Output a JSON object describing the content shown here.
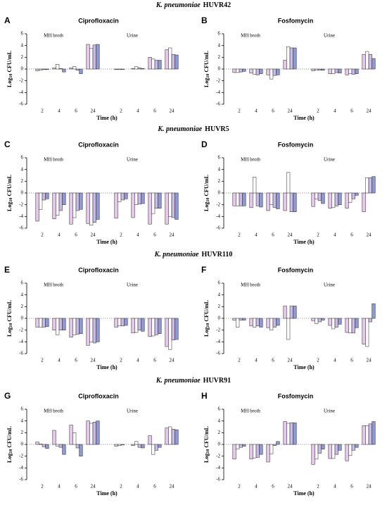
{
  "sections": [
    {
      "species": "K. pneumoniae",
      "strain": "HUVR42"
    },
    {
      "species": "K. pneumoniae",
      "strain": "HUVR5"
    },
    {
      "species": "K. pneumoniae",
      "strain": "HUVR110"
    },
    {
      "species": "K. pneumoniae",
      "strain": "HUVR91"
    }
  ],
  "chart_data": [
    {
      "type": "bar",
      "panel": "A",
      "title": "Ciprofloxacin",
      "ylabel": [
        "Log",
        "10",
        " CFU/mL"
      ],
      "xlabel": "Time (h)",
      "groups": [
        "MH broth",
        "Urine"
      ],
      "categories": [
        "2",
        "4",
        "6",
        "24",
        "2",
        "4",
        "6",
        "24"
      ],
      "ylim": [
        -6,
        6
      ],
      "yticks": [
        -6,
        -4,
        -2,
        0,
        2,
        4,
        6
      ],
      "series": [
        {
          "color": "#e9c6ee",
          "values": [
            -0.3,
            0.2,
            0.2,
            4.2,
            -0.1,
            0.1,
            2.0,
            3.3
          ]
        },
        {
          "color": "#ffffff",
          "values": [
            -0.2,
            0.8,
            0.4,
            3.5,
            -0.1,
            0.4,
            1.7,
            3.6
          ]
        },
        {
          "color": "#cbbbe8",
          "values": [
            -0.1,
            0.1,
            -0.2,
            4.1,
            -0.1,
            0.2,
            1.5,
            2.5
          ]
        },
        {
          "color": "#8c99d8",
          "values": [
            -0.1,
            -0.5,
            -0.8,
            4.2,
            0,
            0.1,
            1.5,
            2.4
          ]
        }
      ]
    },
    {
      "type": "bar",
      "panel": "B",
      "title": "Fosfomycin",
      "ylabel": [
        "Log",
        "10",
        " CFU/mL"
      ],
      "xlabel": "Time (h)",
      "groups": [
        "MH broth",
        "Urine"
      ],
      "categories": [
        "2",
        "4",
        "6",
        "24",
        "2",
        "4",
        "6",
        "24"
      ],
      "ylim": [
        -6,
        6
      ],
      "yticks": [
        -6,
        -4,
        -2,
        0,
        2,
        4,
        6
      ],
      "series": [
        {
          "color": "#e9c6ee",
          "values": [
            -0.6,
            -0.7,
            -1.0,
            1.5,
            -0.3,
            -0.8,
            -1.0,
            2.5
          ]
        },
        {
          "color": "#ffffff",
          "values": [
            -0.6,
            -0.9,
            -1.7,
            3.8,
            -0.2,
            -0.8,
            -0.8,
            3.0
          ]
        },
        {
          "color": "#cbbbe8",
          "values": [
            -0.5,
            -1.0,
            -1.1,
            3.6,
            -0.2,
            -0.6,
            -0.9,
            2.5
          ]
        },
        {
          "color": "#8c99d8",
          "values": [
            -0.4,
            -0.8,
            -1.0,
            3.6,
            -0.2,
            -0.7,
            -0.8,
            1.8
          ]
        }
      ]
    },
    {
      "type": "bar",
      "panel": "C",
      "title": "Ciprofloxacin",
      "ylabel": [
        "Log",
        "10",
        " CFU/mL"
      ],
      "xlabel": "Time (h)",
      "groups": [
        "MH broth",
        "Urine"
      ],
      "categories": [
        "2",
        "4",
        "6",
        "24",
        "2",
        "4",
        "6",
        "24"
      ],
      "ylim": [
        -6,
        6
      ],
      "yticks": [
        -6,
        -4,
        -2,
        0,
        2,
        4,
        6
      ],
      "series": [
        {
          "color": "#e9c6ee",
          "values": [
            -4.8,
            -4.4,
            -5.3,
            -5.2,
            -4.3,
            -4.2,
            -5.3,
            -5.3
          ]
        },
        {
          "color": "#ffffff",
          "values": [
            -2.8,
            -3.8,
            -4.2,
            -5.5,
            -1.5,
            -2.0,
            -3.5,
            -4.0
          ]
        },
        {
          "color": "#cbbbe8",
          "values": [
            -1.2,
            -3.0,
            -3.0,
            -5.0,
            -1.2,
            -1.9,
            -2.6,
            -4.2
          ]
        },
        {
          "color": "#8c99d8",
          "values": [
            -1.0,
            -2.0,
            -2.8,
            -4.5,
            -1.0,
            -1.8,
            -2.6,
            -4.5
          ]
        }
      ]
    },
    {
      "type": "bar",
      "panel": "D",
      "title": "Fosfomycin",
      "ylabel": [
        "Log",
        "10",
        " CFU/mL"
      ],
      "xlabel": "Time (h)",
      "groups": [
        "MH broth",
        "Urine"
      ],
      "categories": [
        "2",
        "4",
        "6",
        "24",
        "2",
        "4",
        "6",
        "24"
      ],
      "ylim": [
        -6,
        6
      ],
      "yticks": [
        -6,
        -4,
        -2,
        0,
        2,
        4,
        6
      ],
      "series": [
        {
          "color": "#e9c6ee",
          "values": [
            -2.2,
            -2.5,
            -3.0,
            -3.0,
            -2.3,
            -2.6,
            -2.6,
            -3.2
          ]
        },
        {
          "color": "#ffffff",
          "values": [
            -2.2,
            2.7,
            -2.0,
            3.5,
            -1.0,
            -2.5,
            -1.6,
            2.6
          ]
        },
        {
          "color": "#cbbbe8",
          "values": [
            -2.2,
            -2.2,
            -2.5,
            -3.2,
            -1.3,
            -2.2,
            -1.0,
            2.6
          ]
        },
        {
          "color": "#8c99d8",
          "values": [
            -2.2,
            -2.4,
            -2.7,
            -3.2,
            -1.8,
            -2.0,
            -0.4,
            2.8
          ]
        }
      ]
    },
    {
      "type": "bar",
      "panel": "E",
      "title": "Ciprofloxacin",
      "ylabel": [
        "Log",
        "10",
        " CFU/mL"
      ],
      "xlabel": "Time (h)",
      "groups": [
        "MH broth",
        "Urine"
      ],
      "categories": [
        "2",
        "4",
        "6",
        "24",
        "2",
        "4",
        "6",
        "24"
      ],
      "ylim": [
        -6,
        6
      ],
      "yticks": [
        -6,
        -4,
        -2,
        0,
        2,
        4,
        6
      ],
      "series": [
        {
          "color": "#e9c6ee",
          "values": [
            -1.5,
            -2.0,
            -3.2,
            -4.6,
            -1.5,
            -2.5,
            -3.1,
            -4.8
          ]
        },
        {
          "color": "#ffffff",
          "values": [
            -1.5,
            -2.8,
            -2.8,
            -4.0,
            -1.3,
            -2.4,
            -3.0,
            -5.3
          ]
        },
        {
          "color": "#cbbbe8",
          "values": [
            -1.5,
            -2.0,
            -2.7,
            -4.2,
            -1.3,
            -2.0,
            -2.8,
            -3.7
          ]
        },
        {
          "color": "#8c99d8",
          "values": [
            -1.4,
            -2.0,
            -2.6,
            -4.0,
            -1.2,
            -2.2,
            -2.6,
            -3.6
          ]
        }
      ]
    },
    {
      "type": "bar",
      "panel": "F",
      "title": "Fosfomycin",
      "ylabel": [
        "Log",
        "10",
        " CFU/mL"
      ],
      "xlabel": "Time (h)",
      "groups": [
        "MH broth",
        "Urine"
      ],
      "categories": [
        "2",
        "4",
        "6",
        "24",
        "2",
        "4",
        "6",
        "24"
      ],
      "ylim": [
        -6,
        6
      ],
      "yticks": [
        -6,
        -4,
        -2,
        0,
        2,
        4,
        6
      ],
      "series": [
        {
          "color": "#e9c6ee",
          "values": [
            -0.3,
            -1.3,
            -1.6,
            2.1,
            -0.4,
            -1.2,
            -2.4,
            -4.4
          ]
        },
        {
          "color": "#ffffff",
          "values": [
            -1.5,
            -1.5,
            -2.0,
            -3.6,
            -0.9,
            -1.8,
            -2.5,
            -4.8
          ]
        },
        {
          "color": "#cbbbe8",
          "values": [
            -0.3,
            -1.3,
            -1.5,
            2.1,
            -0.6,
            -1.5,
            -2.5,
            -0.6
          ]
        },
        {
          "color": "#8c99d8",
          "values": [
            -0.3,
            -1.5,
            -1.2,
            2.1,
            -0.3,
            -1.0,
            -1.6,
            2.5
          ]
        }
      ]
    },
    {
      "type": "bar",
      "panel": "G",
      "title": "Ciprofloxacin",
      "ylabel": [
        "Log",
        "10",
        " CFU/mL"
      ],
      "xlabel": "Time (h)",
      "groups": [
        "MH broth",
        "Urine"
      ],
      "categories": [
        "2",
        "4",
        "6",
        "24",
        "2",
        "4",
        "6",
        "24"
      ],
      "ylim": [
        -6,
        6
      ],
      "yticks": [
        -6,
        -4,
        -2,
        0,
        2,
        4,
        6
      ],
      "series": [
        {
          "color": "#e9c6ee",
          "values": [
            0.4,
            2.4,
            3.3,
            4.0,
            -0.3,
            -0.2,
            1.5,
            2.8
          ]
        },
        {
          "color": "#ffffff",
          "values": [
            0.1,
            -0.3,
            2.0,
            3.6,
            -0.2,
            0.5,
            -1.7,
            3.0
          ]
        },
        {
          "color": "#cbbbe8",
          "values": [
            -0.4,
            -0.5,
            -0.6,
            3.8,
            -0.1,
            -0.5,
            -1.0,
            2.6
          ]
        },
        {
          "color": "#8c99d8",
          "values": [
            -0.7,
            -1.7,
            -2.0,
            4.0,
            0,
            -0.6,
            -0.5,
            2.5
          ]
        }
      ]
    },
    {
      "type": "bar",
      "panel": "H",
      "title": "Fosfomycin",
      "ylabel": [
        "Log",
        "10",
        " CFU/mL"
      ],
      "xlabel": "Time (h)",
      "groups": [
        "MH broth",
        "Urine"
      ],
      "categories": [
        "2",
        "4",
        "6",
        "24",
        "2",
        "4",
        "6",
        "24"
      ],
      "ylim": [
        -6,
        6
      ],
      "yticks": [
        -6,
        -4,
        -2,
        0,
        2,
        4,
        6
      ],
      "series": [
        {
          "color": "#e9c6ee",
          "values": [
            -2.5,
            -2.5,
            -3.0,
            3.9,
            -3.4,
            -2.4,
            -2.8,
            3.2
          ]
        },
        {
          "color": "#ffffff",
          "values": [
            -0.8,
            -2.3,
            -1.6,
            3.6,
            -2.5,
            -2.4,
            -1.9,
            3.2
          ]
        },
        {
          "color": "#cbbbe8",
          "values": [
            -0.5,
            -2.2,
            -0.2,
            3.7,
            -1.5,
            -1.7,
            -1.0,
            3.5
          ]
        },
        {
          "color": "#8c99d8",
          "values": [
            -0.3,
            -1.7,
            0.5,
            3.7,
            -0.8,
            -1.0,
            -0.5,
            3.9
          ]
        }
      ]
    }
  ]
}
